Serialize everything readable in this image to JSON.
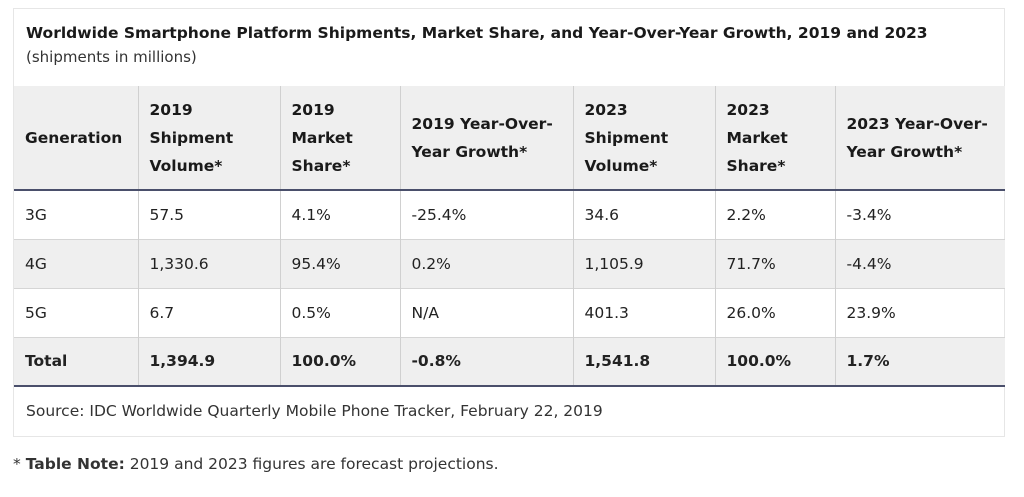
{
  "title": "Worldwide Smartphone Platform Shipments, Market Share, and Year-Over-Year Growth, 2019 and 2023",
  "subtitle": "(shipments in millions)",
  "headers": [
    "Generation",
    "2019 Shipment Volume*",
    "2019 Market Share*",
    "2019 Year-Over-Year Growth*",
    "2023 Shipment Volume*",
    "2023 Market Share*",
    "2023 Year-Over-Year Growth*"
  ],
  "rows": [
    [
      "3G",
      "57.5",
      "4.1%",
      "-25.4%",
      "34.6",
      "2.2%",
      "-3.4%"
    ],
    [
      "4G",
      "1,330.6",
      "95.4%",
      "0.2%",
      "1,105.9",
      "71.7%",
      "-4.4%"
    ],
    [
      "5G",
      "6.7",
      "0.5%",
      "N/A",
      "401.3",
      "26.0%",
      "23.9%"
    ],
    [
      "Total",
      "1,394.9",
      "100.0%",
      "-0.8%",
      "1,541.8",
      "100.0%",
      "1.7%"
    ]
  ],
  "source": "Source: IDC Worldwide Quarterly Mobile Phone Tracker, February 22, 2019",
  "note": {
    "prefix": "* ",
    "label": "Table Note:",
    "text": " 2019 and 2023 figures are forecast projections."
  }
}
